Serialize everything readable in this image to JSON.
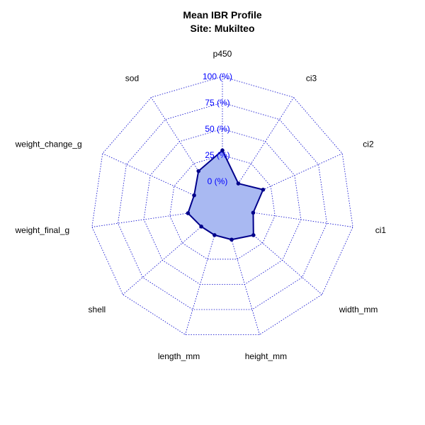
{
  "chart_data": {
    "type": "radar",
    "title": "Mean IBR Profile",
    "subtitle": "Site: Mukilteo",
    "axes": [
      "p450",
      "ci3",
      "ci2",
      "ci1",
      "width_mm",
      "height_mm",
      "length_mm",
      "shell",
      "weight_final_g",
      "weight_change_g",
      "sod"
    ],
    "ring_labels": [
      "0 (%)",
      "25 (%)",
      "50 (%)",
      "75 (%)",
      "100 (%)"
    ],
    "ring_values": [
      0,
      25,
      50,
      75,
      100
    ],
    "series": [
      {
        "values": [
          29.5,
          2.4,
          17.0,
          4.0,
          13.5,
          5.5,
          1.0,
          1.0,
          7.5,
          4.0,
          16.5
        ]
      }
    ],
    "ylim": [
      0,
      100
    ],
    "grid": true
  },
  "colors": {
    "grid": "#0000cc",
    "ring_label": "#0000ff",
    "series_line": "#00008b",
    "series_fill": "#a9b9f2",
    "point": "#00008b",
    "text": "#000000"
  }
}
